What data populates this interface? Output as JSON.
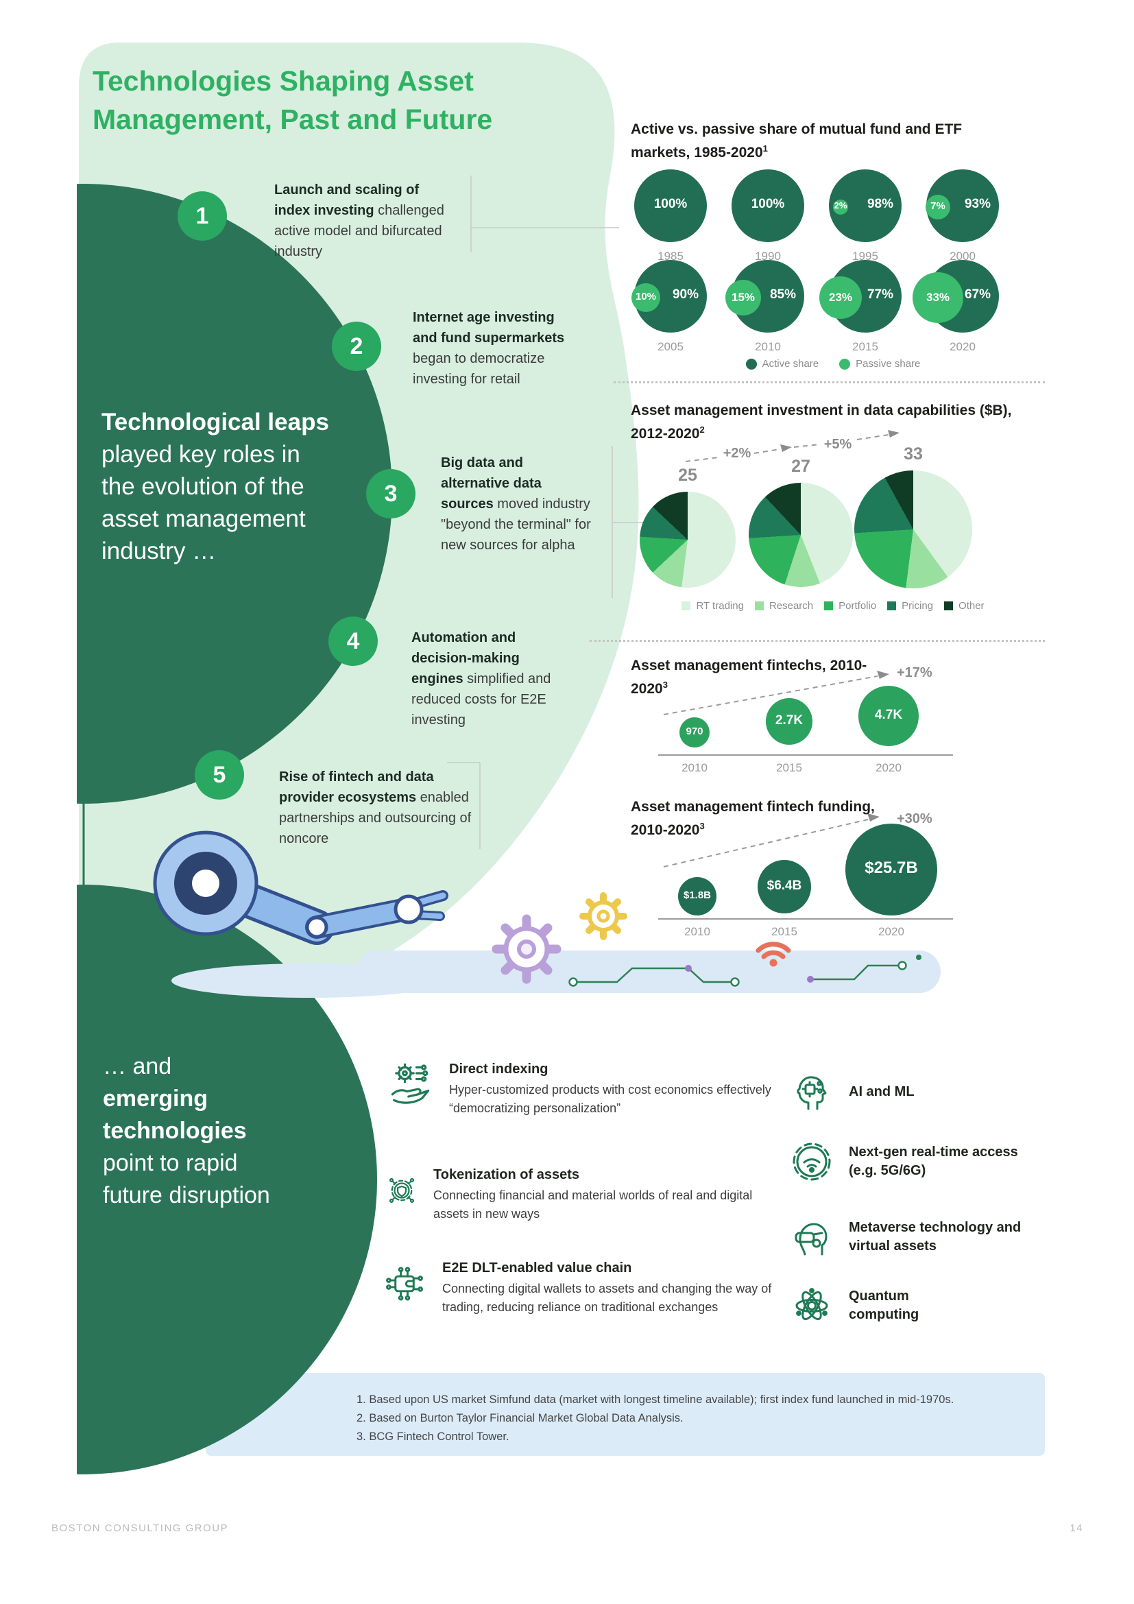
{
  "page": {
    "title": "Technologies Shaping Asset Management, Past and Future",
    "footer_brand": "BOSTON CONSULTING GROUP",
    "footer_page": "14"
  },
  "story": {
    "mid_bold": "Technological leaps",
    "mid_rest": "played key roles in the evolution of the asset management industry …",
    "bottom_pre": "… and",
    "bottom_bold": "emerging technologies",
    "bottom_rest": "point to rapid future disruption"
  },
  "timeline": [
    {
      "num": "1",
      "bold": "Launch and scaling of index investing",
      "rest": "challenged active model and bifurcated industry"
    },
    {
      "num": "2",
      "bold": "Internet age investing and fund supermarkets",
      "rest": "began to democratize investing for retail"
    },
    {
      "num": "3",
      "bold": "Big data and alternative data sources",
      "rest": "moved industry \"beyond the terminal\" for new sources for alpha"
    },
    {
      "num": "4",
      "bold": "Automation and decision-making engines",
      "rest": "simplified and reduced costs for E2E investing"
    },
    {
      "num": "5",
      "bold": "Rise of fintech and data provider ecosystems",
      "rest": "enabled partnerships and outsourcing of noncore"
    }
  ],
  "chart_data": [
    {
      "type": "bubble",
      "title": "Active vs. passive share of mutual fund and ETF markets, 1985-2020",
      "footnote_ref": "1",
      "years": [
        "1985",
        "1990",
        "1995",
        "2000",
        "2005",
        "2010",
        "2015",
        "2020"
      ],
      "series": [
        {
          "name": "Active share",
          "values": [
            100,
            100,
            98,
            93,
            90,
            85,
            77,
            67
          ]
        },
        {
          "name": "Passive share",
          "values": [
            0,
            0,
            2,
            7,
            10,
            15,
            23,
            33
          ]
        }
      ],
      "value_suffix": "%",
      "legend": [
        "Active share",
        "Passive share"
      ],
      "legend_position": "bottom"
    },
    {
      "type": "pie",
      "title": "Asset management investment in data capabilities ($B), 2012-2020",
      "footnote_ref": "2",
      "totals": [
        25,
        27,
        33
      ],
      "growth_labels": [
        "+2%",
        "+5%"
      ],
      "legend": [
        "RT trading",
        "Research",
        "Portfolio",
        "Pricing",
        "Other"
      ],
      "series": [
        {
          "total": 25,
          "slices_pct": [
            52,
            11,
            13,
            11,
            13
          ]
        },
        {
          "total": 27,
          "slices_pct": [
            44,
            11,
            19,
            14,
            12
          ]
        },
        {
          "total": 33,
          "slices_pct": [
            40,
            12,
            22,
            18,
            8
          ]
        }
      ],
      "legend_position": "bottom"
    },
    {
      "type": "bubble",
      "title": "Asset management fintechs, 2010-2020",
      "footnote_ref": "3",
      "years": [
        "2010",
        "2015",
        "2020"
      ],
      "values": [
        970,
        2700,
        4700
      ],
      "labels": [
        "970",
        "2.7K",
        "4.7K"
      ],
      "growth_label": "+17%"
    },
    {
      "type": "bubble",
      "title": "Asset management fintech funding, 2010-2020",
      "footnote_ref": "3",
      "years": [
        "2010",
        "2015",
        "2020"
      ],
      "values_usd_b": [
        1.8,
        6.4,
        25.7
      ],
      "labels": [
        "$1.8B",
        "$6.4B",
        "$25.7B"
      ],
      "growth_label": "+30%"
    }
  ],
  "emerging": {
    "left": [
      {
        "icon": "direct-indexing-icon",
        "title": "Direct indexing",
        "desc": "Hyper-customized products with cost economics effectively “democratizing personalization”"
      },
      {
        "icon": "tokenization-icon",
        "title": "Tokenization of assets",
        "desc": "Connecting financial and material worlds of real and digital assets in new ways"
      },
      {
        "icon": "dlt-wallet-icon",
        "title": "E2E DLT-enabled value chain",
        "desc": "Connecting digital wallets to assets and changing the way of trading, reducing reliance on traditional exchanges"
      }
    ],
    "right": [
      {
        "icon": "ai-ml-icon",
        "label": "AI and ML"
      },
      {
        "icon": "next-gen-access-icon",
        "label": "Next-gen real-time access (e.g. 5G/6G)"
      },
      {
        "icon": "metaverse-icon",
        "label": "Metaverse technology and virtual assets"
      },
      {
        "icon": "quantum-icon",
        "label": "Quantum computing"
      }
    ]
  },
  "footnotes": [
    "1. Based upon US market Simfund data (market with longest timeline available); first index fund launched in mid-1970s.",
    "2. Based on Burton Taylor Financial Market Global Data Analysis.",
    "3. BCG Fintech Control Tower."
  ],
  "colors": {
    "accent": "#2fb163",
    "active": "#226e55",
    "passive": "#3bbb6e",
    "number_circle": "#2aa761",
    "pie": [
      "#d9f1de",
      "#99df9f",
      "#2fb25c",
      "#1e7a58",
      "#103c26"
    ],
    "fintech_bubble": "#2ba25e",
    "funding_bubble": "#226e55",
    "light_blob": "#d8efdf",
    "dark_circle": "#2c7458",
    "footnote_bg": "#dcebf8"
  }
}
